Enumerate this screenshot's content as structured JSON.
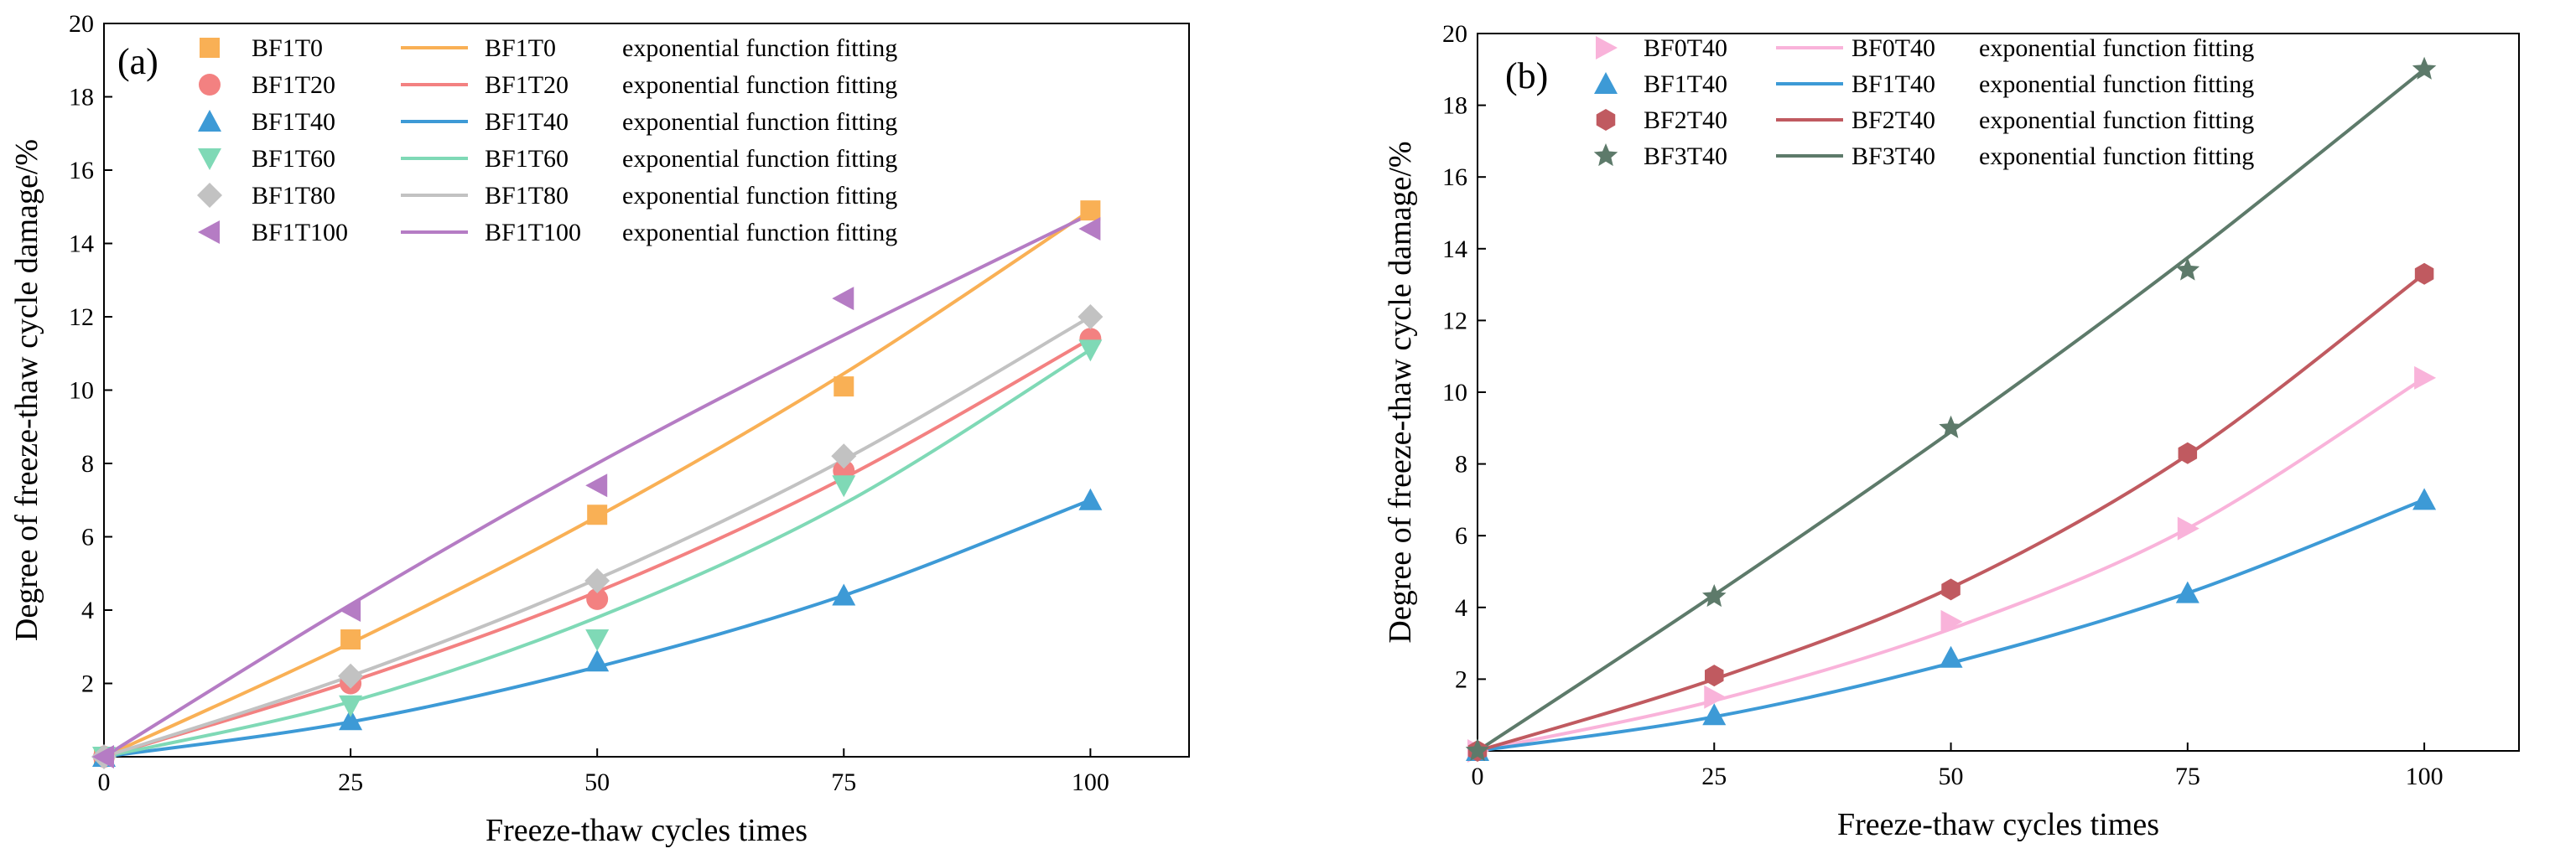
{
  "chart_data": [
    {
      "type": "scatter",
      "panel_label": "(a)",
      "xlabel": "Freeze-thaw cycles times",
      "ylabel": "Degree of freeze-thaw cycle damage/%",
      "xlim": [
        0,
        110
      ],
      "ylim": [
        0,
        20
      ],
      "xticks": [
        0,
        25,
        50,
        75,
        100
      ],
      "yticks": [
        2,
        4,
        6,
        8,
        10,
        12,
        14,
        16,
        18,
        20
      ],
      "x": [
        0,
        25,
        50,
        75,
        100
      ],
      "legend_position": "top-left",
      "fit_suffix": "exponential function fitting",
      "series": [
        {
          "name": "BF1T0",
          "marker": "square",
          "color": "#F9B055",
          "values": [
            0,
            3.2,
            6.6,
            10.1,
            14.9
          ],
          "fit": [
            0,
            3.1,
            6.55,
            10.45,
            14.9
          ]
        },
        {
          "name": "BF1T20",
          "marker": "circle",
          "color": "#F38181",
          "values": [
            0,
            2.0,
            4.3,
            7.8,
            11.4
          ],
          "fit": [
            0,
            2.05,
            4.5,
            7.6,
            11.4
          ]
        },
        {
          "name": "BF1T40",
          "marker": "triangle-up",
          "color": "#3D9AD6",
          "values": [
            0,
            1.0,
            2.6,
            4.4,
            7.0
          ],
          "fit": [
            0,
            0.95,
            2.45,
            4.4,
            7.0
          ]
        },
        {
          "name": "BF1T60",
          "marker": "triangle-down",
          "color": "#7FD9B6",
          "values": [
            0,
            1.4,
            3.2,
            7.4,
            11.1
          ],
          "fit": [
            0,
            1.5,
            3.8,
            6.9,
            11.1
          ]
        },
        {
          "name": "BF1T80",
          "marker": "diamond",
          "color": "#C2C2C2",
          "values": [
            0,
            2.2,
            4.8,
            8.2,
            12.0
          ],
          "fit": [
            0,
            2.2,
            4.85,
            8.1,
            12.0
          ]
        },
        {
          "name": "BF1T100",
          "marker": "triangle-left",
          "color": "#B57CC4",
          "values": [
            0,
            4.0,
            7.4,
            12.5,
            14.4
          ],
          "fit": [
            0,
            4.15,
            8.0,
            11.5,
            14.8
          ]
        }
      ]
    },
    {
      "type": "scatter",
      "panel_label": "(b)",
      "xlabel": "Freeze-thaw cycles times",
      "ylabel": "Degree of freeze-thaw cycle damage/%",
      "xlim": [
        0,
        110
      ],
      "ylim": [
        0,
        20
      ],
      "xticks": [
        0,
        25,
        50,
        75,
        100
      ],
      "yticks": [
        2,
        4,
        6,
        8,
        10,
        12,
        14,
        16,
        18,
        20
      ],
      "x": [
        0,
        25,
        50,
        75,
        100
      ],
      "legend_position": "top-left",
      "fit_suffix": "exponential function fitting",
      "series": [
        {
          "name": "BF0T40",
          "marker": "triangle-right",
          "color": "#F9B3DA",
          "values": [
            0,
            1.5,
            3.6,
            6.2,
            10.4
          ],
          "fit": [
            0,
            1.4,
            3.4,
            6.2,
            10.4
          ]
        },
        {
          "name": "BF1T40",
          "marker": "triangle-up",
          "color": "#3D9AD6",
          "values": [
            0,
            1.0,
            2.6,
            4.4,
            7.0
          ],
          "fit": [
            0,
            0.95,
            2.45,
            4.4,
            7.0
          ]
        },
        {
          "name": "BF2T40",
          "marker": "hexagon",
          "color": "#C05A60",
          "values": [
            0,
            2.1,
            4.5,
            8.3,
            13.3
          ],
          "fit": [
            0,
            2.0,
            4.55,
            8.25,
            13.3
          ]
        },
        {
          "name": "BF3T40",
          "marker": "star",
          "color": "#5D7A6A",
          "values": [
            0,
            4.3,
            9.0,
            13.4,
            19.0
          ],
          "fit": [
            0,
            4.35,
            8.9,
            13.75,
            19.0
          ]
        }
      ]
    }
  ]
}
